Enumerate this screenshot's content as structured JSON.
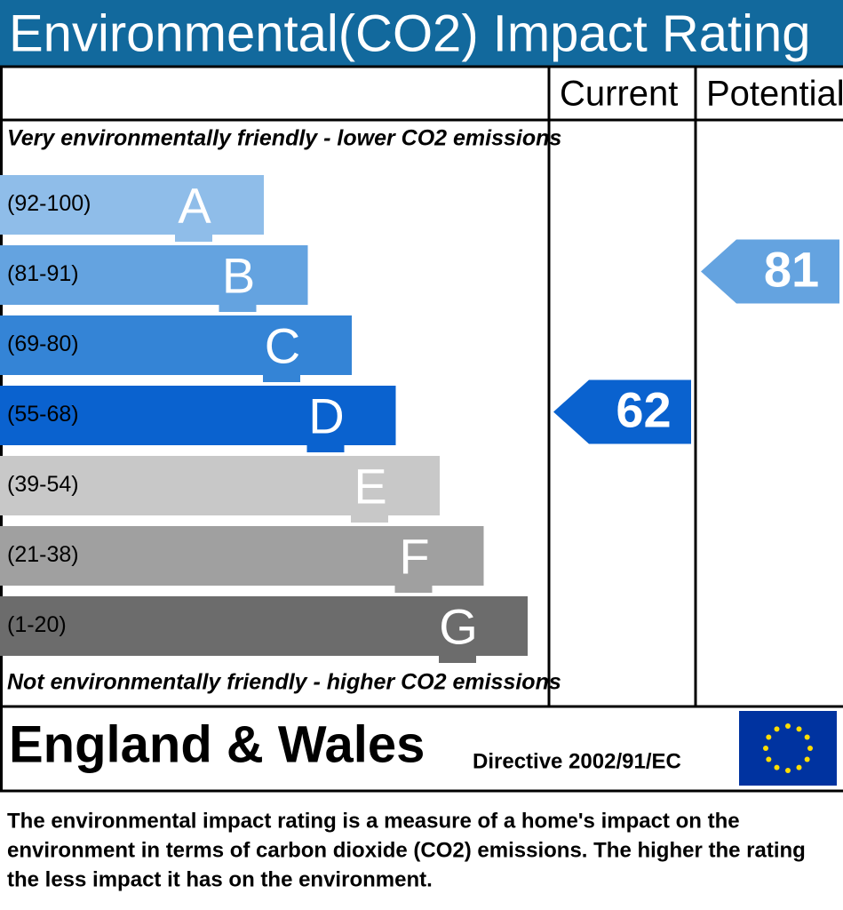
{
  "chart_data": {
    "type": "epc",
    "title": "Environmental(CO2) Impact Rating",
    "column_headers": [
      "Current",
      "Potential"
    ],
    "top_note": "Very environmentally friendly - lower CO2 emissions",
    "bottom_note": "Not environmentally friendly - higher CO2 emissions",
    "bands": [
      {
        "letter": "A",
        "range": "(92-100)",
        "color": "#8fbde9"
      },
      {
        "letter": "B",
        "range": "(81-91)",
        "color": "#64a3e0"
      },
      {
        "letter": "C",
        "range": "(69-80)",
        "color": "#3484d6"
      },
      {
        "letter": "D",
        "range": "(55-68)",
        "color": "#0a62cf"
      },
      {
        "letter": "E",
        "range": "(39-54)",
        "color": "#c8c8c8"
      },
      {
        "letter": "F",
        "range": "(21-38)",
        "color": "#a0a0a0"
      },
      {
        "letter": "G",
        "range": "(1-20)",
        "color": "#6c6c6c"
      }
    ],
    "current": {
      "value": 62,
      "color": "#0a62cf"
    },
    "potential": {
      "value": 81,
      "color": "#64a3e0"
    },
    "region": "England & Wales",
    "directive": "Directive 2002/91/EC",
    "description": [
      "The environmental impact rating is a measure of a home's impact on the",
      "environment in terms of carbon dioxide (CO2) emissions. The higher the rating",
      "the less impact it has on the environment."
    ]
  }
}
